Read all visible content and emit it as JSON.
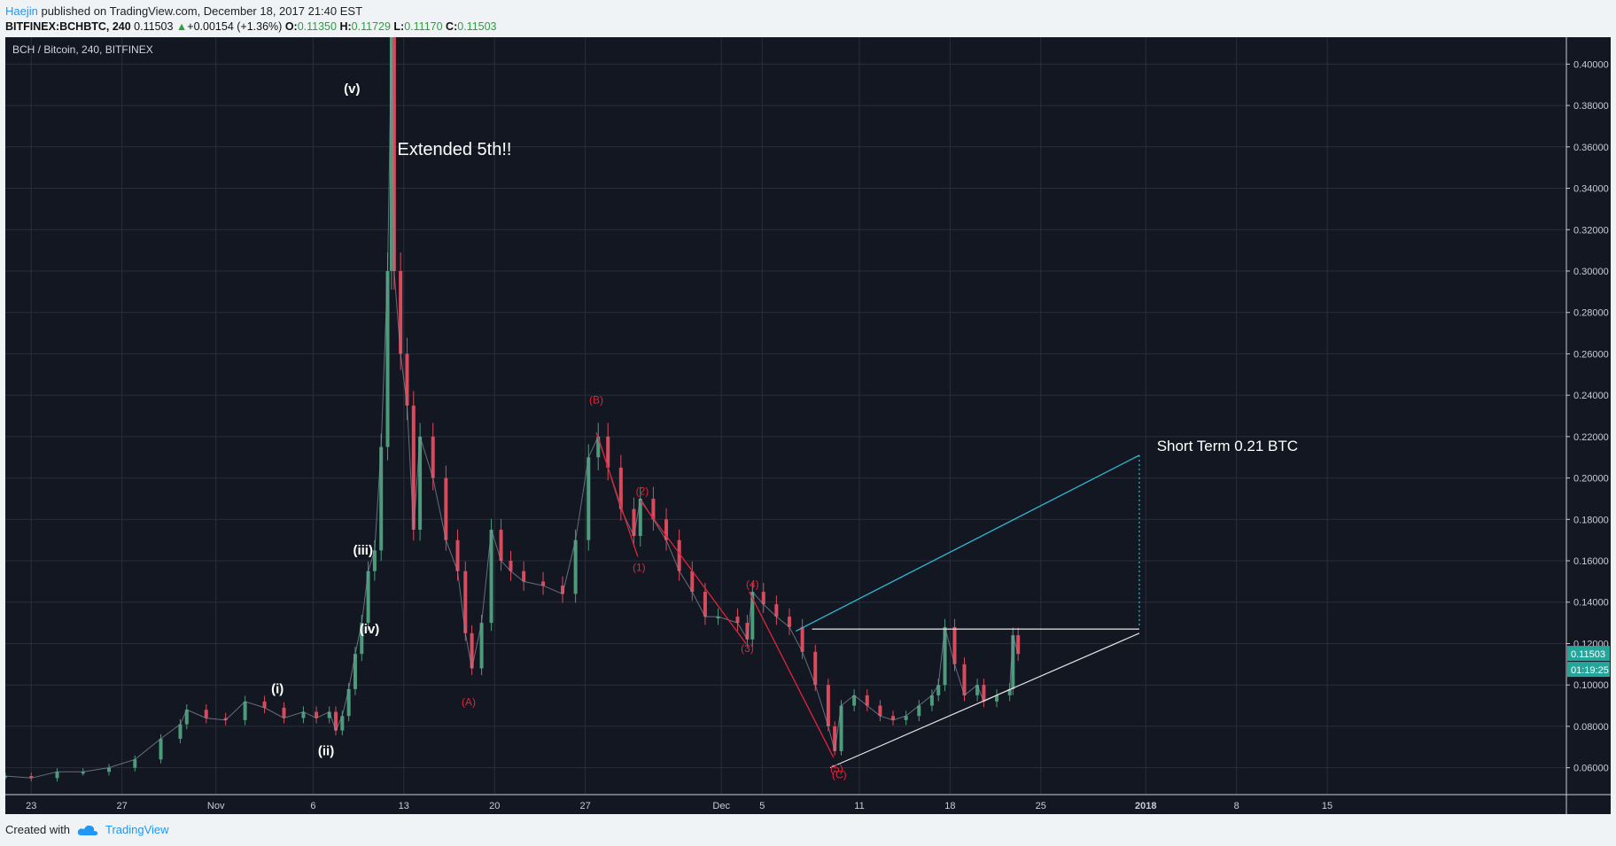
{
  "header": {
    "author": "Haejin",
    "published": " published on TradingView.com, December 18, 2017 21:40 EST"
  },
  "quote": {
    "symbol": "BITFINEX:BCHBTC, 240",
    "last": "0.11503",
    "change": "+0.00154 (+1.36%)",
    "o_label": "O:",
    "o": "0.11350",
    "h_label": "H:",
    "h": "0.11729",
    "l_label": "L:",
    "l": "0.11170",
    "c_label": "C:",
    "c": "0.11503"
  },
  "chart_data": {
    "type": "line",
    "title": "BCH / Bitcoin, 240, BITFINEX",
    "ylim": [
      0.047,
      0.413
    ],
    "y_ticks": [
      "0.40000",
      "0.38000",
      "0.36000",
      "0.34000",
      "0.32000",
      "0.30000",
      "0.28000",
      "0.26000",
      "0.24000",
      "0.22000",
      "0.20000",
      "0.18000",
      "0.16000",
      "0.14000",
      "0.12000",
      "0.10000",
      "0.08000",
      "0.06000"
    ],
    "x_ticks": [
      "23",
      "27",
      "Nov",
      "6",
      "13",
      "20",
      "27",
      "Dec",
      "5",
      "11",
      "18",
      "25",
      "2018",
      "8",
      "15"
    ],
    "price_badge": "0.11503",
    "time_badge": "01:19:25",
    "colors": {
      "up": "#4c9b7a",
      "down": "#d94a5c",
      "wave_red": "#e0243a",
      "cyan": "#2fb7d4",
      "white": "#e6e6e6"
    },
    "series": [
      {
        "values": [
          [
            0,
            0.056
          ],
          [
            4,
            0.055
          ],
          [
            8,
            0.058
          ],
          [
            12,
            0.058
          ],
          [
            16,
            0.06
          ],
          [
            20,
            0.064
          ],
          [
            24,
            0.074
          ],
          [
            27,
            0.081
          ],
          [
            28,
            0.088
          ],
          [
            31,
            0.084
          ],
          [
            34,
            0.083
          ],
          [
            37,
            0.092
          ],
          [
            40,
            0.089
          ],
          [
            43,
            0.084
          ],
          [
            46,
            0.087
          ],
          [
            48,
            0.084
          ],
          [
            50,
            0.087
          ],
          [
            51,
            0.078
          ],
          [
            52,
            0.085
          ],
          [
            53,
            0.098
          ],
          [
            54,
            0.115
          ],
          [
            55,
            0.13
          ],
          [
            56,
            0.155
          ],
          [
            57,
            0.165
          ],
          [
            58,
            0.215
          ],
          [
            59,
            0.3
          ],
          [
            59.6,
            0.413
          ],
          [
            60,
            0.3
          ],
          [
            61,
            0.26
          ],
          [
            62,
            0.235
          ],
          [
            63,
            0.175
          ],
          [
            64,
            0.22
          ],
          [
            66,
            0.2
          ],
          [
            68,
            0.17
          ],
          [
            69.8,
            0.155
          ],
          [
            71,
            0.125
          ],
          [
            72,
            0.108
          ],
          [
            73.5,
            0.13
          ],
          [
            75,
            0.175
          ],
          [
            76.5,
            0.16
          ],
          [
            78,
            0.155
          ],
          [
            80,
            0.15
          ],
          [
            83,
            0.148
          ],
          [
            86,
            0.144
          ],
          [
            88,
            0.17
          ],
          [
            90,
            0.21
          ],
          [
            91.5,
            0.22
          ],
          [
            93,
            0.205
          ],
          [
            95,
            0.185
          ],
          [
            97,
            0.172
          ],
          [
            98,
            0.19
          ],
          [
            100,
            0.18
          ],
          [
            102,
            0.17
          ],
          [
            104,
            0.155
          ],
          [
            106,
            0.145
          ],
          [
            108,
            0.133
          ],
          [
            110,
            0.133
          ],
          [
            113,
            0.13
          ],
          [
            114.5,
            0.122
          ],
          [
            115.3,
            0.145
          ],
          [
            117,
            0.139
          ],
          [
            119,
            0.133
          ],
          [
            121,
            0.128
          ],
          [
            123,
            0.116
          ],
          [
            125,
            0.1
          ],
          [
            127,
            0.08
          ],
          [
            128,
            0.068
          ],
          [
            129,
            0.09
          ],
          [
            131,
            0.095
          ],
          [
            133,
            0.09
          ],
          [
            135,
            0.085
          ],
          [
            137,
            0.083
          ],
          [
            139,
            0.085
          ],
          [
            141,
            0.09
          ],
          [
            143,
            0.095
          ],
          [
            144,
            0.1
          ],
          [
            145,
            0.128
          ],
          [
            146.5,
            0.11
          ],
          [
            148,
            0.095
          ],
          [
            150,
            0.1
          ],
          [
            151,
            0.092
          ],
          [
            153,
            0.095
          ],
          [
            155,
            0.098
          ],
          [
            155.5,
            0.124
          ],
          [
            156.3,
            0.115
          ]
        ]
      }
    ],
    "wave_labels_white": [
      {
        "text": "(v)",
        "x": 53.5,
        "y": 0.386
      },
      {
        "text": "(iii)",
        "x": 55.2,
        "y": 0.163
      },
      {
        "text": "(iv)",
        "x": 56.2,
        "y": 0.125
      },
      {
        "text": "(i)",
        "x": 42,
        "y": 0.096
      },
      {
        "text": "(ii)",
        "x": 49.5,
        "y": 0.066
      }
    ],
    "wave_labels_red": [
      {
        "text": "(B)",
        "x": 91.2,
        "y": 0.236
      },
      {
        "text": "(2)",
        "x": 98.3,
        "y": 0.192
      },
      {
        "text": "(1)",
        "x": 97.8,
        "y": 0.155
      },
      {
        "text": "(4)",
        "x": 115.3,
        "y": 0.147
      },
      {
        "text": "(3)",
        "x": 114.5,
        "y": 0.116
      },
      {
        "text": "(A)",
        "x": 71.5,
        "y": 0.09
      },
      {
        "text": "(5)",
        "x": 128.3,
        "y": 0.058
      },
      {
        "text": "(C)",
        "x": 128.7,
        "y": 0.055
      }
    ],
    "annotations": [
      {
        "text": "Extended 5th!!",
        "x": 60.5,
        "y": 0.356
      },
      {
        "text": "Short Term 0.21 BTC",
        "x": 177.7,
        "y": 0.213
      }
    ],
    "red_lines": [
      [
        [
          91.2,
          0.222
        ],
        [
          97.6,
          0.162
        ]
      ],
      [
        [
          98.0,
          0.189
        ],
        [
          114.3,
          0.12
        ]
      ],
      [
        [
          114.8,
          0.145
        ],
        [
          127.8,
          0.065
        ]
      ]
    ],
    "cyan_line": [
      [
        122,
        0.126
      ],
      [
        175,
        0.211
      ]
    ],
    "cyan_dotted": [
      [
        175,
        0.211
      ],
      [
        175,
        0.128
      ]
    ],
    "white_lines": [
      [
        [
          124.5,
          0.127
        ],
        [
          175,
          0.127
        ]
      ],
      [
        [
          127.3,
          0.06
        ],
        [
          175,
          0.125
        ]
      ]
    ]
  }
}
